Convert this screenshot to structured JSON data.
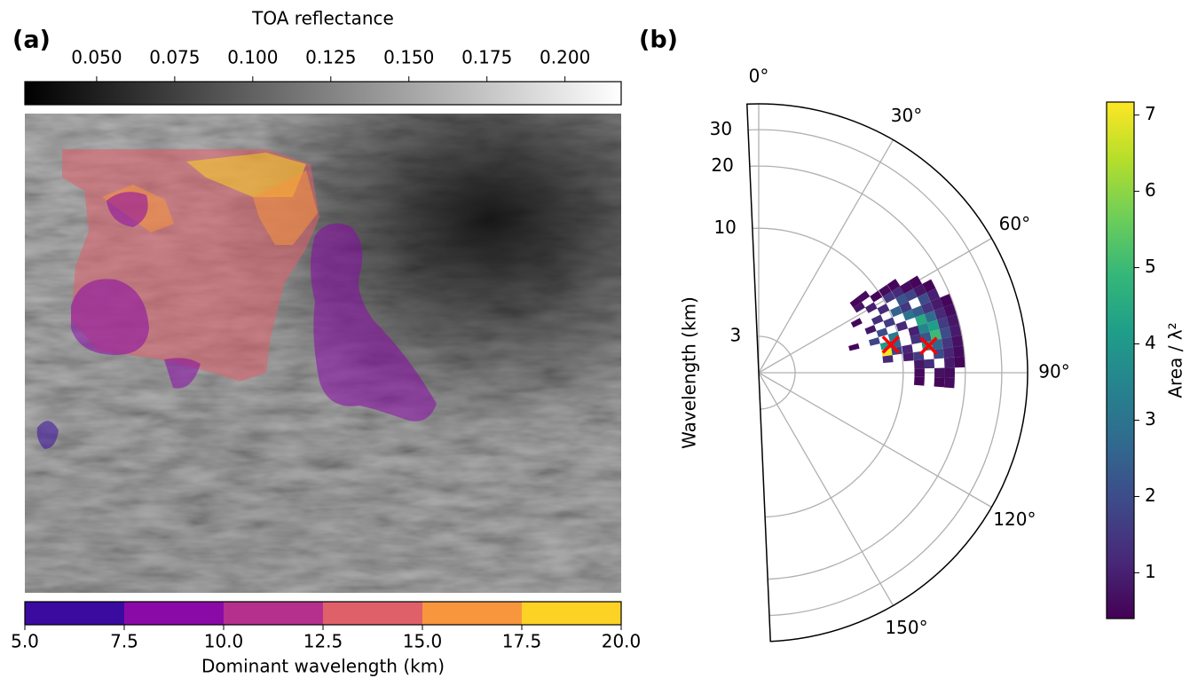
{
  "chart_data": [
    {
      "type": "image",
      "panel_label": "(a)",
      "colorbar_top": {
        "label": "TOA reflectance",
        "colormap": "gray",
        "lim": [
          0.027,
          0.218
        ],
        "ticks": [
          {
            "value": 0.05,
            "label": "0.050"
          },
          {
            "value": 0.075,
            "label": "0.075"
          },
          {
            "value": 0.1,
            "label": "0.100"
          },
          {
            "value": 0.125,
            "label": "0.125"
          },
          {
            "value": 0.15,
            "label": "0.150"
          },
          {
            "value": 0.175,
            "label": "0.175"
          },
          {
            "value": 0.2,
            "label": "0.200"
          }
        ]
      },
      "colorbar_bottom": {
        "label": "Dominant wavelength (km)",
        "bins": [
          5,
          7.5,
          10,
          12.5,
          15,
          17.5,
          20
        ],
        "colors": [
          "#3a0b9e",
          "#8a0aa8",
          "#b5308c",
          "#e0606a",
          "#f8963e",
          "#fcd225"
        ],
        "ticks": [
          {
            "value": 5,
            "label": "5.0"
          },
          7.5,
          {
            "value": 10,
            "label": "10.0"
          },
          12.5,
          {
            "value": 15,
            "label": "15.0"
          },
          17.5,
          {
            "value": 20,
            "label": "20.0"
          }
        ]
      },
      "regions": {
        "values": [
          13.5,
          18.5,
          16,
          16,
          9,
          8.5,
          8.8,
          6.3,
          9.2
        ],
        "opacity": 0.55
      }
    },
    {
      "type": "polar",
      "panel_label": "(b)",
      "ylabel": "Wavelength (km)",
      "rscale": "log",
      "rlim": [
        2,
        40
      ],
      "rticks": [
        3,
        10,
        20,
        30
      ],
      "thetalim": [
        -2.5,
        177.5
      ],
      "thetaticks": [
        {
          "value": 0,
          "label": "0°"
        },
        {
          "value": 30,
          "label": "30°"
        },
        {
          "value": 60,
          "label": "60°"
        },
        {
          "value": 90,
          "label": "90°"
        },
        {
          "value": 120,
          "label": "120°"
        },
        {
          "value": 150,
          "label": "150°"
        }
      ],
      "theta_direction": "clockwise",
      "theta_zero": "N",
      "grid": true,
      "cells": {
        "theta": [
          54,
          54,
          57,
          57,
          57,
          57,
          60,
          60,
          60,
          60,
          60,
          63,
          63,
          63,
          63,
          63,
          63,
          66,
          66,
          66,
          66,
          66,
          69,
          69,
          69,
          69,
          69,
          69,
          69,
          72,
          72,
          72,
          72,
          72,
          72,
          75,
          75,
          75,
          75,
          75,
          75,
          75,
          75,
          78,
          78,
          78,
          78,
          78,
          78,
          78,
          81,
          81,
          81,
          81,
          81,
          81,
          81,
          84,
          84,
          84,
          84,
          84,
          84,
          87,
          87,
          87,
          87,
          90,
          90,
          90,
          93,
          93,
          93
        ],
        "wavelength": [
          7.6,
          8.5,
          7.6,
          9.5,
          10.7,
          12,
          8.5,
          10.7,
          12,
          13.4,
          15,
          6.8,
          9.5,
          12,
          13.4,
          15,
          16.8,
          8.5,
          10.7,
          12,
          15,
          16.8,
          7.6,
          9.5,
          12,
          13.4,
          15,
          16.8,
          18.8,
          8.5,
          10.7,
          13.4,
          15,
          16.8,
          18.8,
          6,
          7.6,
          9.5,
          12,
          13.4,
          15,
          16.8,
          18.8,
          8.5,
          9.5,
          12,
          13.4,
          15,
          16.8,
          18.8,
          8.5,
          9.5,
          10.7,
          13.4,
          15,
          16.8,
          18.8,
          8.5,
          10.7,
          12,
          15,
          16.8,
          18.8,
          12,
          13.4,
          16.8,
          18.8,
          12,
          15,
          16.8,
          12,
          15,
          16.8
        ],
        "values": [
          0.5,
          0.6,
          0.8,
          0.5,
          0.6,
          0.5,
          1.0,
          1.5,
          1.2,
          0.6,
          0.5,
          0.5,
          1.2,
          2.2,
          1.8,
          0.8,
          0.5,
          1.3,
          2.5,
          1.5,
          2.0,
          1.0,
          0.8,
          1.6,
          3.0,
          2.4,
          1.4,
          0.9,
          0.5,
          2.0,
          1.2,
          4.5,
          2.8,
          1.2,
          0.6,
          0.5,
          1.8,
          3.2,
          1.0,
          3.5,
          4.2,
          1.6,
          0.8,
          4.0,
          2.6,
          1.4,
          2.2,
          5.0,
          2.0,
          0.9,
          7.1,
          1.8,
          1.1,
          3.8,
          2.6,
          1.5,
          0.7,
          1.2,
          0.9,
          1.6,
          1.9,
          1.1,
          0.6,
          0.8,
          1.3,
          0.9,
          0.5,
          0.6,
          0.7,
          0.6,
          0.5,
          0.5,
          0.6
        ]
      },
      "cmap": "viridis",
      "clim": [
        0.4,
        7.17
      ],
      "colorbar": {
        "label": "Area / λ²",
        "ticks": [
          1,
          2,
          3,
          4,
          5,
          6,
          7
        ]
      },
      "markers": {
        "theta": [
          78,
          81
        ],
        "wavelength": [
          9,
          13.6
        ],
        "color": "#ff0000",
        "marker": "x"
      }
    }
  ]
}
